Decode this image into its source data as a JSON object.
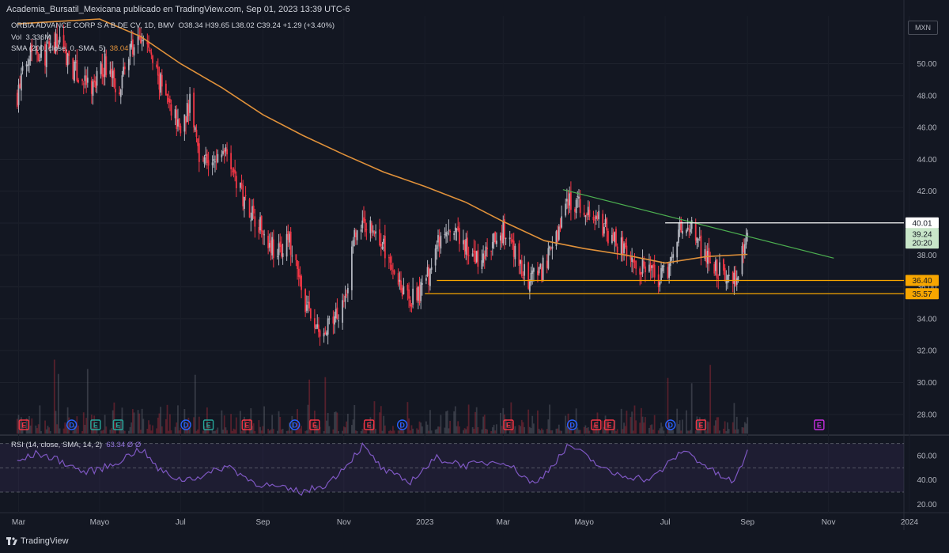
{
  "header": {
    "publisher_line": "Academia_Bursatil_Mexicana publicado en TradingView.com, Sep 01, 2023 13:39 UTC-6"
  },
  "legend": {
    "symbol": "ORBIA ADVANCE CORP S A B DE CV, 1D, BMV",
    "ohlc": "O38.34  H39.65  L38.02  C39.24  +1.29 (+3.40%)",
    "vol_label": "Vol",
    "vol_value": "3.336M",
    "sma_label": "SMA (200, close, 0, SMA, 5)",
    "sma_value": "38.04",
    "rsi_label": "RSI (14, close, SMA, 14, 2)",
    "rsi_values": "63.34  Ø  Ø"
  },
  "currency": "MXN",
  "footer": {
    "brand": "TradingView"
  },
  "colors": {
    "background": "#131722",
    "up": "#b2b5be",
    "down": "#f23645",
    "sma": "#e0913a",
    "trendline": "#4caf50",
    "resistance": "#ffffff",
    "support": "#f7a600",
    "rsi": "#7e57c2"
  },
  "chart_data": {
    "type": "candlestick",
    "y_axis_ticks": [
      28,
      30,
      32,
      34,
      36,
      38,
      40,
      42,
      44,
      46,
      48,
      50
    ],
    "ylim": [
      26.8,
      53.0
    ],
    "x_axis_ticks": [
      "Mar",
      "Mayo",
      "Jul",
      "Sep",
      "Nov",
      "2023",
      "Mar",
      "Mayo",
      "Jul",
      "Sep",
      "Nov",
      "2024"
    ],
    "price_series": [
      [
        "2022-02-28",
        48.0
      ],
      [
        "2022-03-10",
        51.2
      ],
      [
        "2022-03-20",
        50.5
      ],
      [
        "2022-04-01",
        51.5
      ],
      [
        "2022-04-12",
        49.5
      ],
      [
        "2022-04-25",
        48.3
      ],
      [
        "2022-05-05",
        50.0
      ],
      [
        "2022-05-15",
        48.5
      ],
      [
        "2022-05-25",
        51.0
      ],
      [
        "2022-06-05",
        51.5
      ],
      [
        "2022-06-12",
        49.5
      ],
      [
        "2022-06-22",
        47.5
      ],
      [
        "2022-07-01",
        46.0
      ],
      [
        "2022-07-08",
        47.5
      ],
      [
        "2022-07-15",
        44.5
      ],
      [
        "2022-07-25",
        43.5
      ],
      [
        "2022-08-05",
        45.0
      ],
      [
        "2022-08-12",
        42.5
      ],
      [
        "2022-08-22",
        41.0
      ],
      [
        "2022-09-02",
        39.5
      ],
      [
        "2022-09-12",
        38.0
      ],
      [
        "2022-09-20",
        39.0
      ],
      [
        "2022-09-28",
        36.5
      ],
      [
        "2022-10-05",
        34.5
      ],
      [
        "2022-10-15",
        32.7
      ],
      [
        "2022-10-25",
        34.0
      ],
      [
        "2022-11-02",
        35.5
      ],
      [
        "2022-11-10",
        39.5
      ],
      [
        "2022-11-20",
        40.0
      ],
      [
        "2022-12-01",
        38.5
      ],
      [
        "2022-12-10",
        37.0
      ],
      [
        "2022-12-20",
        35.0
      ],
      [
        "2023-01-01",
        36.0
      ],
      [
        "2023-01-10",
        38.5
      ],
      [
        "2023-01-20",
        39.5
      ],
      [
        "2023-02-01",
        38.5
      ],
      [
        "2023-02-10",
        37.5
      ],
      [
        "2023-02-20",
        38.5
      ],
      [
        "2023-03-01",
        39.5
      ],
      [
        "2023-03-10",
        38.0
      ],
      [
        "2023-03-20",
        36.3
      ],
      [
        "2023-03-30",
        37.0
      ],
      [
        "2023-04-08",
        38.5
      ],
      [
        "2023-04-18",
        41.5
      ],
      [
        "2023-04-28",
        41.0
      ],
      [
        "2023-05-08",
        40.5
      ],
      [
        "2023-05-18",
        39.5
      ],
      [
        "2023-05-28",
        38.5
      ],
      [
        "2023-06-07",
        37.5
      ],
      [
        "2023-06-17",
        37.0
      ],
      [
        "2023-06-27",
        36.5
      ],
      [
        "2023-07-05",
        37.5
      ],
      [
        "2023-07-12",
        39.5
      ],
      [
        "2023-07-20",
        39.8
      ],
      [
        "2023-07-28",
        38.5
      ],
      [
        "2023-08-05",
        37.5
      ],
      [
        "2023-08-15",
        36.5
      ],
      [
        "2023-08-22",
        36.5
      ],
      [
        "2023-08-28",
        38.0
      ],
      [
        "2023-09-01",
        39.24
      ]
    ],
    "sma_200": [
      [
        "2022-02-28",
        52.5
      ],
      [
        "2022-05-01",
        52.8
      ],
      [
        "2022-06-01",
        51.7
      ],
      [
        "2022-07-01",
        50.0
      ],
      [
        "2022-08-01",
        48.5
      ],
      [
        "2022-09-01",
        46.8
      ],
      [
        "2022-10-01",
        45.5
      ],
      [
        "2022-11-01",
        44.3
      ],
      [
        "2022-12-01",
        43.2
      ],
      [
        "2023-01-01",
        42.3
      ],
      [
        "2023-02-01",
        41.3
      ],
      [
        "2023-03-01",
        40.1
      ],
      [
        "2023-04-01",
        38.9
      ],
      [
        "2023-05-01",
        38.4
      ],
      [
        "2023-06-01",
        38.0
      ],
      [
        "2023-07-01",
        37.5
      ],
      [
        "2023-08-01",
        37.9
      ],
      [
        "2023-09-01",
        38.04
      ]
    ],
    "drawn_lines": {
      "descending_trendline": [
        [
          "2023-04-15",
          42.1
        ],
        [
          "2023-11-05",
          37.8
        ]
      ],
      "resistance": {
        "from": "2023-07-01",
        "value": 40.01,
        "label": "40.01"
      },
      "support_1": {
        "from": "2023-01-10",
        "value": 36.4,
        "label": "36.40"
      },
      "support_2": {
        "from": "2023-01-01",
        "value": 35.57,
        "label": "35.57"
      }
    },
    "last_price": {
      "value": 39.24,
      "label": "39.24",
      "countdown": "20:20"
    },
    "rsi": {
      "ticks": [
        20,
        40,
        60
      ],
      "bands": [
        30,
        50,
        70
      ],
      "series": [
        [
          "2022-02-28",
          55
        ],
        [
          "2022-03-15",
          62
        ],
        [
          "2022-04-01",
          56
        ],
        [
          "2022-04-20",
          46
        ],
        [
          "2022-05-10",
          52
        ],
        [
          "2022-06-01",
          66
        ],
        [
          "2022-06-15",
          48
        ],
        [
          "2022-07-01",
          40
        ],
        [
          "2022-07-20",
          44
        ],
        [
          "2022-08-05",
          52
        ],
        [
          "2022-08-25",
          38
        ],
        [
          "2022-09-15",
          33
        ],
        [
          "2022-10-01",
          30
        ],
        [
          "2022-10-20",
          37
        ],
        [
          "2022-11-05",
          55
        ],
        [
          "2022-11-15",
          68
        ],
        [
          "2022-12-01",
          48
        ],
        [
          "2022-12-20",
          38
        ],
        [
          "2023-01-10",
          58
        ],
        [
          "2023-02-01",
          52
        ],
        [
          "2023-03-01",
          56
        ],
        [
          "2023-03-25",
          36
        ],
        [
          "2023-04-20",
          69
        ],
        [
          "2023-05-20",
          46
        ],
        [
          "2023-06-20",
          40
        ],
        [
          "2023-07-15",
          65
        ],
        [
          "2023-08-10",
          44
        ],
        [
          "2023-08-22",
          38
        ],
        [
          "2023-09-01",
          63.34
        ]
      ]
    },
    "events": [
      [
        "2022-03-05",
        "E"
      ],
      [
        "2022-04-10",
        "D"
      ],
      [
        "2022-04-28",
        "E"
      ],
      [
        "2022-05-15",
        "E"
      ],
      [
        "2022-07-05",
        "D"
      ],
      [
        "2022-07-22",
        "E"
      ],
      [
        "2022-08-20",
        "E"
      ],
      [
        "2022-09-25",
        "D"
      ],
      [
        "2022-10-10",
        "E"
      ],
      [
        "2022-11-20",
        "E"
      ],
      [
        "2022-12-15",
        "D"
      ],
      [
        "2023-03-05",
        "E"
      ],
      [
        "2023-04-22",
        "D"
      ],
      [
        "2023-05-10",
        "E"
      ],
      [
        "2023-05-20",
        "E"
      ],
      [
        "2023-07-05",
        "D"
      ],
      [
        "2023-07-28",
        "E"
      ],
      [
        "2023-10-25",
        "E"
      ]
    ]
  }
}
